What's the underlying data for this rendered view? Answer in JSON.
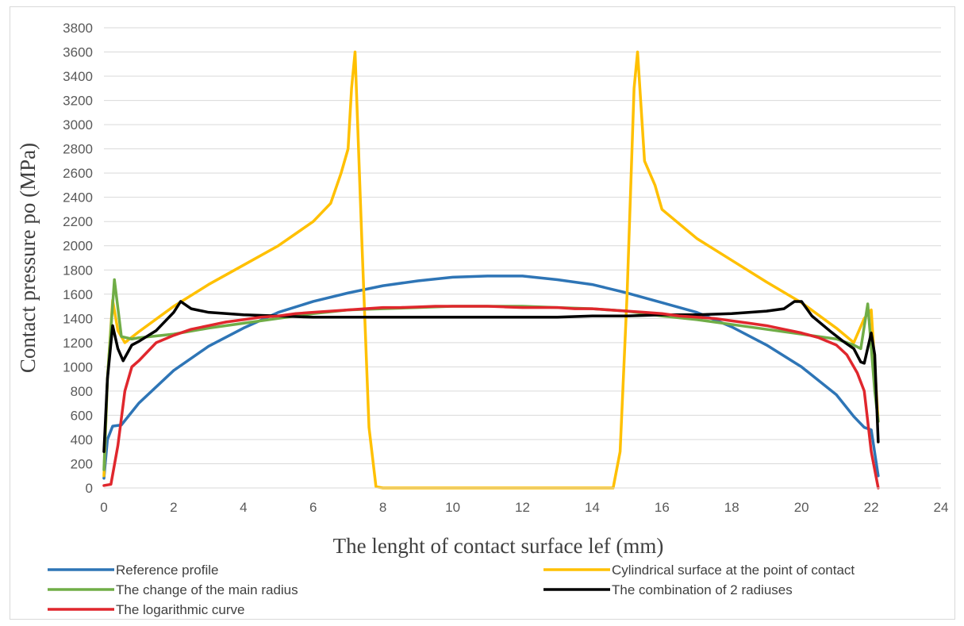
{
  "chart_data": {
    "type": "line",
    "title": "",
    "xlabel": "The lenght of contact surface lef (mm)",
    "ylabel": "Contact pressure po (MPa)",
    "xlim": [
      0,
      24
    ],
    "ylim": [
      0,
      3800
    ],
    "xticks": [
      0,
      2,
      4,
      6,
      8,
      10,
      12,
      14,
      16,
      18,
      20,
      22,
      24
    ],
    "yticks": [
      0,
      200,
      400,
      600,
      800,
      1000,
      1200,
      1400,
      1600,
      1800,
      2000,
      2200,
      2400,
      2600,
      2800,
      3000,
      3200,
      3400,
      3600,
      3800
    ],
    "grid": "horizontal",
    "legend_position": "bottom",
    "series": [
      {
        "name": "Reference profile",
        "color": "#2e75b6",
        "points": [
          [
            0,
            80
          ],
          [
            0.1,
            400
          ],
          [
            0.25,
            510
          ],
          [
            0.5,
            520
          ],
          [
            1,
            700
          ],
          [
            2,
            970
          ],
          [
            3,
            1170
          ],
          [
            4,
            1320
          ],
          [
            5,
            1450
          ],
          [
            6,
            1540
          ],
          [
            7,
            1610
          ],
          [
            8,
            1670
          ],
          [
            9,
            1710
          ],
          [
            10,
            1740
          ],
          [
            11,
            1750
          ],
          [
            12,
            1750
          ],
          [
            13,
            1720
          ],
          [
            14,
            1680
          ],
          [
            15,
            1610
          ],
          [
            16,
            1530
          ],
          [
            17,
            1450
          ],
          [
            18,
            1330
          ],
          [
            19,
            1180
          ],
          [
            20,
            1000
          ],
          [
            21,
            770
          ],
          [
            21.5,
            590
          ],
          [
            21.8,
            500
          ],
          [
            22,
            480
          ],
          [
            22.2,
            100
          ]
        ]
      },
      {
        "name": "Cylindrical surface at the point of contact",
        "color": "#ffc000",
        "points": [
          [
            0,
            100
          ],
          [
            0.1,
            900
          ],
          [
            0.25,
            1550
          ],
          [
            0.4,
            1300
          ],
          [
            0.6,
            1200
          ],
          [
            1,
            1290
          ],
          [
            2,
            1500
          ],
          [
            3,
            1680
          ],
          [
            4,
            1840
          ],
          [
            5,
            2000
          ],
          [
            6,
            2200
          ],
          [
            6.5,
            2350
          ],
          [
            6.8,
            2600
          ],
          [
            7,
            2800
          ],
          [
            7.1,
            3300
          ],
          [
            7.2,
            3600
          ],
          [
            7.4,
            2000
          ],
          [
            7.6,
            500
          ],
          [
            7.8,
            10
          ],
          [
            8,
            0
          ],
          [
            10,
            0
          ],
          [
            12,
            0
          ],
          [
            14,
            0
          ],
          [
            14.6,
            0
          ],
          [
            14.8,
            300
          ],
          [
            15,
            1600
          ],
          [
            15.2,
            3300
          ],
          [
            15.3,
            3600
          ],
          [
            15.5,
            2700
          ],
          [
            15.8,
            2500
          ],
          [
            16,
            2300
          ],
          [
            17,
            2060
          ],
          [
            18,
            1880
          ],
          [
            19,
            1700
          ],
          [
            20,
            1530
          ],
          [
            21,
            1320
          ],
          [
            21.5,
            1200
          ],
          [
            21.8,
            1400
          ],
          [
            22,
            1470
          ],
          [
            22.2,
            550
          ]
        ]
      },
      {
        "name": "The change of the main radius",
        "color": "#70ad47",
        "points": [
          [
            0,
            150
          ],
          [
            0.1,
            900
          ],
          [
            0.3,
            1720
          ],
          [
            0.5,
            1250
          ],
          [
            0.8,
            1230
          ],
          [
            1,
            1240
          ],
          [
            2,
            1270
          ],
          [
            3,
            1320
          ],
          [
            4,
            1360
          ],
          [
            5,
            1400
          ],
          [
            6,
            1440
          ],
          [
            7,
            1470
          ],
          [
            8,
            1480
          ],
          [
            9,
            1490
          ],
          [
            10,
            1500
          ],
          [
            11,
            1500
          ],
          [
            12,
            1500
          ],
          [
            13,
            1490
          ],
          [
            14,
            1480
          ],
          [
            15,
            1460
          ],
          [
            16,
            1420
          ],
          [
            17,
            1390
          ],
          [
            18,
            1350
          ],
          [
            19,
            1310
          ],
          [
            20,
            1270
          ],
          [
            21,
            1230
          ],
          [
            21.5,
            1180
          ],
          [
            21.7,
            1150
          ],
          [
            21.9,
            1520
          ],
          [
            22.1,
            800
          ],
          [
            22.2,
            550
          ]
        ]
      },
      {
        "name": "The combination of 2 radiuses",
        "color": "#000000",
        "points": [
          [
            0,
            300
          ],
          [
            0.1,
            900
          ],
          [
            0.25,
            1340
          ],
          [
            0.4,
            1150
          ],
          [
            0.55,
            1050
          ],
          [
            0.8,
            1180
          ],
          [
            1,
            1210
          ],
          [
            1.5,
            1300
          ],
          [
            2,
            1450
          ],
          [
            2.2,
            1540
          ],
          [
            2.5,
            1480
          ],
          [
            3,
            1450
          ],
          [
            4,
            1430
          ],
          [
            5,
            1420
          ],
          [
            6,
            1410
          ],
          [
            7,
            1410
          ],
          [
            8,
            1410
          ],
          [
            9,
            1410
          ],
          [
            10,
            1410
          ],
          [
            11,
            1410
          ],
          [
            12,
            1410
          ],
          [
            13,
            1410
          ],
          [
            14,
            1420
          ],
          [
            15,
            1420
          ],
          [
            16,
            1430
          ],
          [
            17,
            1430
          ],
          [
            18,
            1440
          ],
          [
            19,
            1460
          ],
          [
            19.5,
            1480
          ],
          [
            19.8,
            1540
          ],
          [
            20,
            1540
          ],
          [
            20.3,
            1420
          ],
          [
            20.8,
            1300
          ],
          [
            21.2,
            1210
          ],
          [
            21.5,
            1150
          ],
          [
            21.7,
            1040
          ],
          [
            21.8,
            1030
          ],
          [
            22,
            1280
          ],
          [
            22.1,
            1100
          ],
          [
            22.2,
            380
          ]
        ]
      },
      {
        "name": "The logarithmic curve",
        "color": "#e0272d",
        "points": [
          [
            0,
            20
          ],
          [
            0.2,
            30
          ],
          [
            0.4,
            350
          ],
          [
            0.6,
            800
          ],
          [
            0.8,
            1000
          ],
          [
            1,
            1050
          ],
          [
            1.5,
            1200
          ],
          [
            2,
            1260
          ],
          [
            2.5,
            1310
          ],
          [
            3,
            1340
          ],
          [
            3.5,
            1370
          ],
          [
            4,
            1390
          ],
          [
            4.5,
            1410
          ],
          [
            5,
            1420
          ],
          [
            5.5,
            1440
          ],
          [
            6,
            1450
          ],
          [
            6.5,
            1460
          ],
          [
            7,
            1470
          ],
          [
            7.5,
            1480
          ],
          [
            8,
            1490
          ],
          [
            8.5,
            1490
          ],
          [
            9,
            1495
          ],
          [
            9.5,
            1500
          ],
          [
            10,
            1500
          ],
          [
            10.5,
            1500
          ],
          [
            11,
            1500
          ],
          [
            11.5,
            1495
          ],
          [
            12,
            1490
          ],
          [
            12.5,
            1490
          ],
          [
            13,
            1490
          ],
          [
            13.5,
            1480
          ],
          [
            14,
            1480
          ],
          [
            14.5,
            1470
          ],
          [
            15,
            1460
          ],
          [
            15.5,
            1450
          ],
          [
            16,
            1440
          ],
          [
            16.5,
            1420
          ],
          [
            17,
            1410
          ],
          [
            17.5,
            1400
          ],
          [
            18,
            1380
          ],
          [
            18.5,
            1360
          ],
          [
            19,
            1340
          ],
          [
            19.5,
            1310
          ],
          [
            20,
            1280
          ],
          [
            20.5,
            1240
          ],
          [
            21,
            1180
          ],
          [
            21.3,
            1100
          ],
          [
            21.6,
            950
          ],
          [
            21.8,
            800
          ],
          [
            22,
            300
          ],
          [
            22.2,
            0
          ]
        ]
      }
    ]
  }
}
